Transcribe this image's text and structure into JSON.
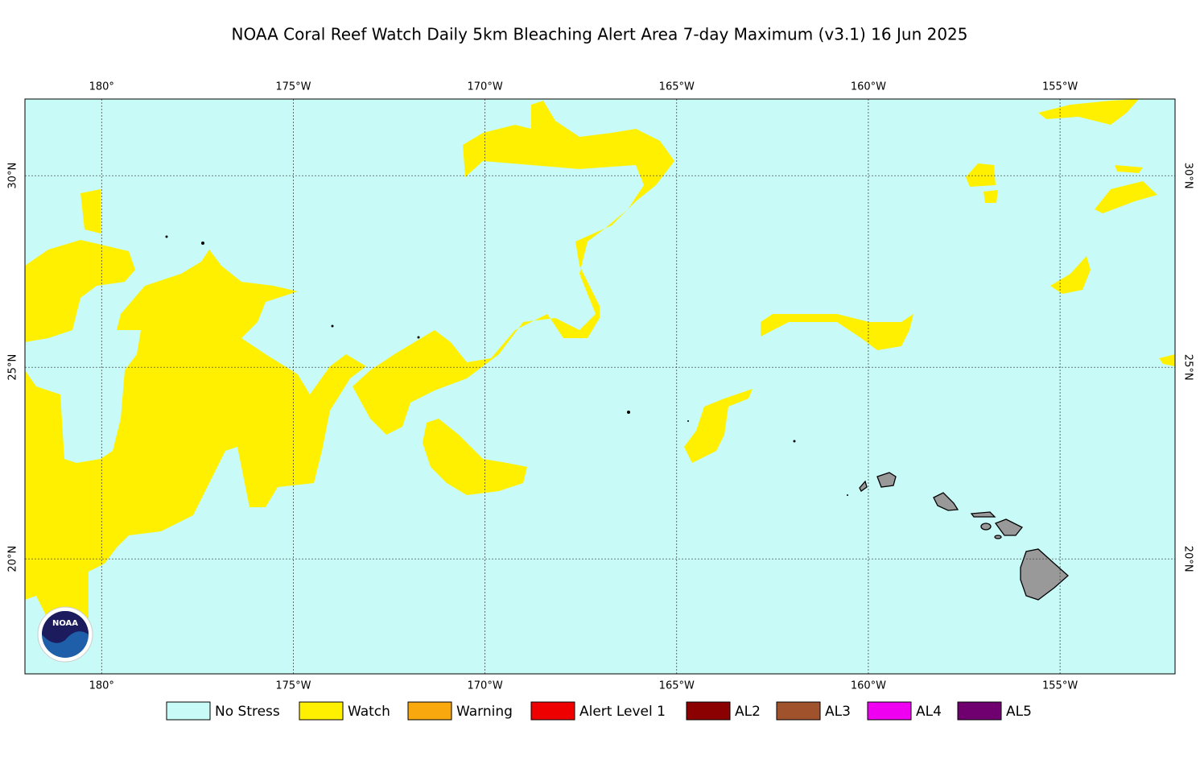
{
  "map": {
    "title": "NOAA Coral Reef Watch Daily 5km Bleaching Alert Area 7-day Maximum  (v3.1)   16 Jun 2025",
    "logo_text": "NOAA",
    "xlim": [
      -182,
      -152
    ],
    "ylim": [
      17,
      32
    ],
    "xticks": [
      {
        "value": -180,
        "label": "180°"
      },
      {
        "value": -175,
        "label": "175°W"
      },
      {
        "value": -170,
        "label": "170°W"
      },
      {
        "value": -165,
        "label": "165°W"
      },
      {
        "value": -160,
        "label": "160°W"
      },
      {
        "value": -155,
        "label": "155°W"
      }
    ],
    "yticks": [
      {
        "value": 20,
        "label": "20°N"
      },
      {
        "value": 25,
        "label": "25°N"
      },
      {
        "value": 30,
        "label": "30°N"
      }
    ],
    "legend": [
      {
        "name": "No Stress",
        "color": "#c8fbf8"
      },
      {
        "name": "Watch",
        "color": "#fff000"
      },
      {
        "name": "Warning",
        "color": "#f9a80e"
      },
      {
        "name": "Alert Level 1",
        "color": "#ef0000"
      },
      {
        "name": "AL2",
        "color": "#8b0000"
      },
      {
        "name": "AL3",
        "color": "#a0522d"
      },
      {
        "name": "AL4",
        "color": "#f000f0"
      },
      {
        "name": "AL5",
        "color": "#700070"
      }
    ]
  }
}
